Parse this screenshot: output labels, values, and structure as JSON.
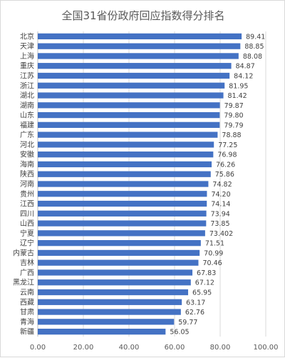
{
  "chart_data": {
    "type": "bar",
    "orientation": "horizontal",
    "title": "全国31省份政府回应指数得分排名",
    "categories": [
      "北京",
      "天津",
      "上海",
      "重庆",
      "江苏",
      "浙江",
      "湖北",
      "湖南",
      "山东",
      "福建",
      "广东",
      "河北",
      "安徽",
      "海南",
      "陕西",
      "河南",
      "贵州",
      "江西",
      "四川",
      "山西",
      "宁夏",
      "辽宁",
      "内蒙古",
      "吉林",
      "广西",
      "黑龙江",
      "云南",
      "西藏",
      "甘肃",
      "青海",
      "新疆"
    ],
    "values": [
      89.41,
      88.85,
      88.08,
      84.87,
      84.12,
      81.95,
      81.42,
      79.87,
      79.8,
      79.79,
      78.88,
      77.25,
      76.98,
      76.26,
      75.86,
      74.82,
      74.2,
      74.14,
      73.94,
      73.85,
      73.402,
      71.51,
      70.99,
      70.46,
      67.83,
      67.12,
      65.95,
      63.17,
      62.76,
      59.77,
      56.05
    ],
    "value_labels": [
      "89.41",
      "88.85",
      "88.08",
      "84.87",
      "84.12",
      "81.95",
      "81.42",
      "79.87",
      "79.80",
      "79.79",
      "78.88",
      "77.25",
      "76.98",
      "76.26",
      "75.86",
      "74.82",
      "74.20",
      "74.14",
      "73.94",
      "73.85",
      "73.402",
      "71.51",
      "70.99",
      "70.46",
      "67.83",
      "67.12",
      "65.95",
      "63.17",
      "62.76",
      "59.77",
      "56.05"
    ],
    "xlim": [
      0,
      100
    ],
    "x_ticks": [
      0,
      20,
      40,
      60,
      80,
      100
    ],
    "x_tick_labels": [
      "0.00",
      "20.00",
      "40.00",
      "60.00",
      "80.00",
      "100.00"
    ],
    "grid": true,
    "bar_color": "#4472C4"
  }
}
